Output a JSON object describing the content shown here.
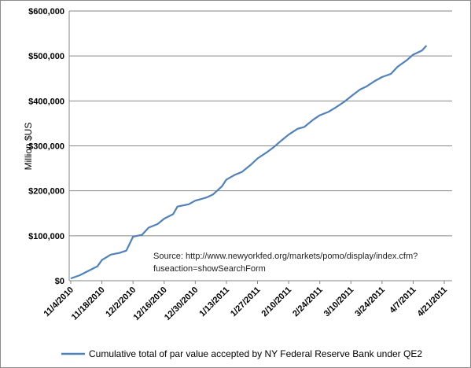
{
  "chart_data": {
    "type": "line",
    "title": "",
    "xlabel": "",
    "ylabel": "Million $US",
    "ylim": [
      0,
      600000
    ],
    "yticks": [
      "$0",
      "$100,000",
      "$200,000",
      "$300,000",
      "$400,000",
      "$500,000",
      "$600,000"
    ],
    "xticks": [
      "11/4/2010",
      "11/18/2010",
      "12/2/2010",
      "12/16/2010",
      "12/30/2010",
      "1/13/2011",
      "1/27/2011",
      "2/10/2011",
      "2/24/2011",
      "3/10/2011",
      "3/24/2011",
      "4/7/2011",
      "4/21/2011"
    ],
    "grid": "horizontal major",
    "legend_position": "bottom",
    "annotation": [
      "Source: http://www.newyorkfed.org/markets/pomo/display/index.cfm?",
      "fuseaction=showSearchForm"
    ],
    "color": "#4f81bd",
    "series": [
      {
        "name": "Cumulative total of par value accepted by NY Federal Reserve Bank under QE2",
        "points": [
          [
            "11/4/2010",
            5000
          ],
          [
            "11/8/2010",
            12000
          ],
          [
            "11/12/2010",
            22000
          ],
          [
            "11/16/2010",
            32000
          ],
          [
            "11/18/2010",
            46000
          ],
          [
            "11/22/2010",
            58000
          ],
          [
            "11/26/2010",
            62000
          ],
          [
            "11/29/2010",
            67000
          ],
          [
            "12/2/2010",
            98000
          ],
          [
            "12/6/2010",
            102000
          ],
          [
            "12/9/2010",
            118000
          ],
          [
            "12/13/2010",
            126000
          ],
          [
            "12/16/2010",
            138000
          ],
          [
            "12/20/2010",
            148000
          ],
          [
            "12/22/2010",
            165000
          ],
          [
            "12/27/2010",
            170000
          ],
          [
            "12/30/2010",
            178000
          ],
          [
            "1/4/2011",
            185000
          ],
          [
            "1/7/2011",
            192000
          ],
          [
            "1/11/2011",
            210000
          ],
          [
            "1/13/2011",
            225000
          ],
          [
            "1/17/2011",
            236000
          ],
          [
            "1/20/2011",
            242000
          ],
          [
            "1/24/2011",
            258000
          ],
          [
            "1/27/2011",
            272000
          ],
          [
            "1/31/2011",
            285000
          ],
          [
            "2/3/2011",
            296000
          ],
          [
            "2/7/2011",
            313000
          ],
          [
            "2/10/2011",
            325000
          ],
          [
            "2/14/2011",
            338000
          ],
          [
            "2/17/2011",
            342000
          ],
          [
            "2/21/2011",
            358000
          ],
          [
            "2/24/2011",
            368000
          ],
          [
            "2/28/2011",
            376000
          ],
          [
            "3/3/2011",
            385000
          ],
          [
            "3/7/2011",
            398000
          ],
          [
            "3/10/2011",
            410000
          ],
          [
            "3/14/2011",
            425000
          ],
          [
            "3/17/2011",
            432000
          ],
          [
            "3/21/2011",
            445000
          ],
          [
            "3/24/2011",
            453000
          ],
          [
            "3/28/2011",
            460000
          ],
          [
            "3/31/2011",
            476000
          ],
          [
            "4/4/2011",
            490000
          ],
          [
            "4/7/2011",
            503000
          ],
          [
            "4/11/2011",
            512000
          ],
          [
            "4/13/2011",
            523000
          ]
        ]
      }
    ]
  }
}
